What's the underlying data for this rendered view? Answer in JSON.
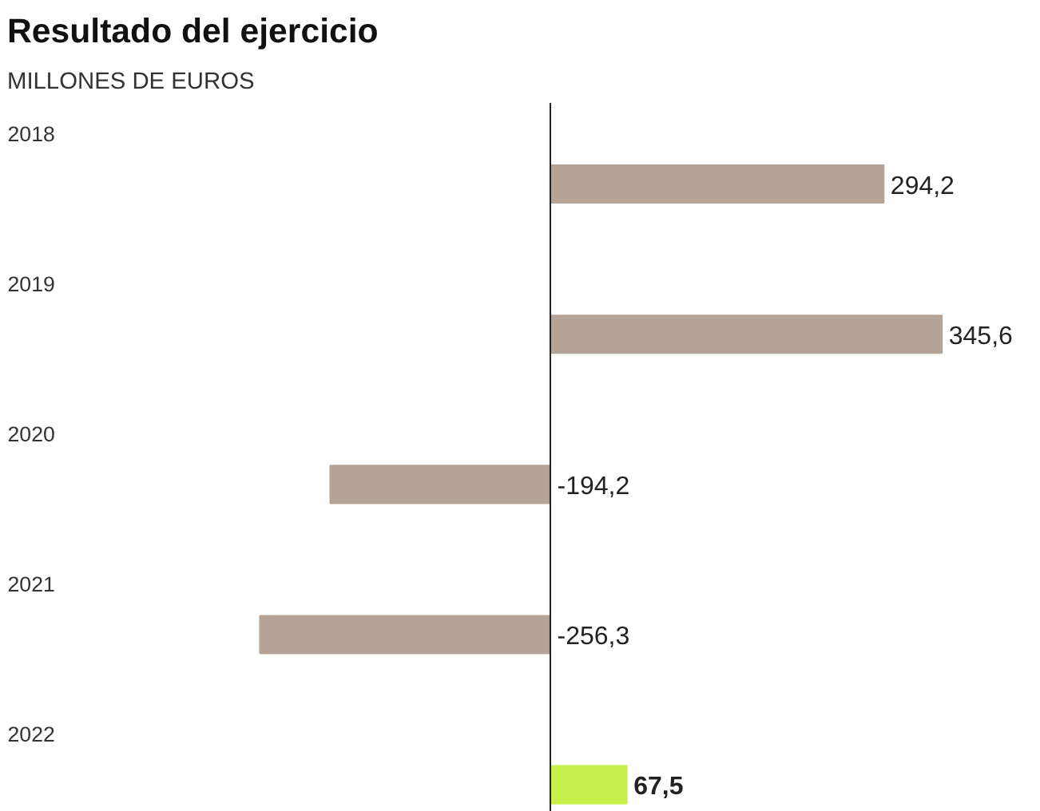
{
  "chart_data": {
    "type": "bar",
    "orientation": "horizontal",
    "title": "Resultado del ejercicio",
    "subtitle": "MILLONES DE EUROS",
    "categories": [
      "2018",
      "2019",
      "2020",
      "2021",
      "2022"
    ],
    "values": [
      294.2,
      345.6,
      -194.2,
      -256.3,
      67.5
    ],
    "colors": [
      "#b5a398",
      "#b5a398",
      "#b5a398",
      "#b5a398",
      "#c8f04a"
    ],
    "value_labels": [
      "294,2",
      "345,6",
      "-194,2",
      "-256,3",
      "67,5"
    ],
    "grid": false
  }
}
